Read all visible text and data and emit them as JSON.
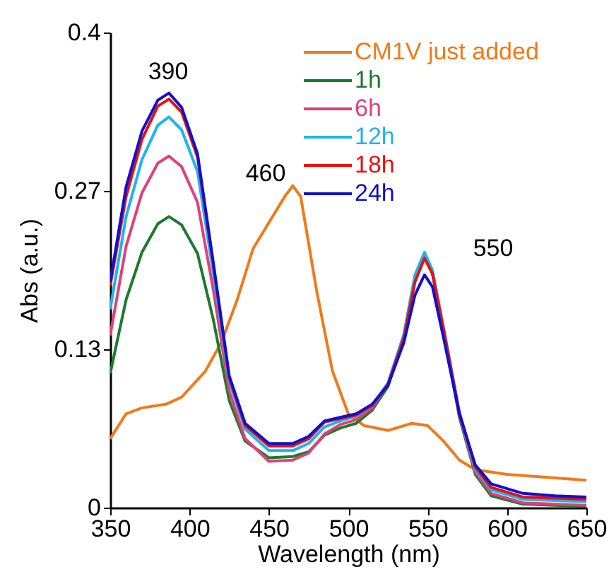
{
  "chart_data": {
    "type": "line",
    "xlabel": "Wavelength (nm)",
    "ylabel": "Abs (a.u.)",
    "xlim": [
      350,
      650
    ],
    "xticks": [
      350,
      400,
      450,
      500,
      550,
      600,
      650
    ],
    "ylim": [
      0,
      0.4
    ],
    "yticks": [
      0,
      {
        "value": 0.1333,
        "label": "0.13"
      },
      {
        "value": 0.2667,
        "label": "0.27"
      },
      0.4
    ],
    "grid": false,
    "legend": "top right",
    "marker": "none",
    "line_style": "solid",
    "annotations": [
      "390",
      "460",
      "550"
    ],
    "x": [
      350,
      360,
      370,
      380,
      387,
      395,
      405,
      415,
      425,
      435,
      450,
      465,
      475,
      485,
      495,
      505,
      515,
      525,
      535,
      542,
      548,
      553,
      560,
      570,
      580,
      590,
      610,
      630,
      650
    ],
    "series": [
      {
        "name": "CM1V just added",
        "color": "#f07a1a",
        "x": [
          350,
          360,
          370,
          385,
          395,
          410,
          420,
          430,
          440,
          450,
          460,
          465,
          470,
          480,
          490,
          500,
          510,
          525,
          540,
          550,
          560,
          570,
          580,
          600,
          620,
          650
        ],
        "values": [
          0.058,
          0.079,
          0.084,
          0.087,
          0.093,
          0.115,
          0.139,
          0.175,
          0.218,
          0.24,
          0.262,
          0.271,
          0.262,
          0.183,
          0.115,
          0.079,
          0.069,
          0.065,
          0.071,
          0.069,
          0.056,
          0.04,
          0.032,
          0.028,
          0.026,
          0.023
        ]
      },
      {
        "name": "1h",
        "color": "#1e7a2e",
        "values": [
          0.113,
          0.175,
          0.215,
          0.239,
          0.245,
          0.238,
          0.214,
          0.158,
          0.09,
          0.056,
          0.042,
          0.043,
          0.047,
          0.061,
          0.067,
          0.071,
          0.082,
          0.102,
          0.144,
          0.192,
          0.211,
          0.197,
          0.149,
          0.076,
          0.028,
          0.01,
          0.003,
          0.002,
          0.001
        ]
      },
      {
        "name": "6h",
        "color": "#e0407a",
        "values": [
          0.145,
          0.22,
          0.265,
          0.29,
          0.296,
          0.287,
          0.257,
          0.183,
          0.098,
          0.058,
          0.039,
          0.04,
          0.046,
          0.062,
          0.07,
          0.074,
          0.084,
          0.104,
          0.145,
          0.193,
          0.212,
          0.198,
          0.15,
          0.078,
          0.03,
          0.012,
          0.004,
          0.003,
          0.002
        ]
      },
      {
        "name": "12h",
        "color": "#1eb4ec",
        "values": [
          0.167,
          0.245,
          0.293,
          0.322,
          0.329,
          0.318,
          0.283,
          0.197,
          0.106,
          0.066,
          0.048,
          0.048,
          0.054,
          0.068,
          0.073,
          0.077,
          0.086,
          0.105,
          0.146,
          0.196,
          0.215,
          0.2,
          0.152,
          0.08,
          0.032,
          0.015,
          0.007,
          0.006,
          0.005
        ]
      },
      {
        "name": "18h",
        "color": "#e81010",
        "values": [
          0.187,
          0.262,
          0.31,
          0.338,
          0.344,
          0.333,
          0.295,
          0.204,
          0.109,
          0.069,
          0.052,
          0.052,
          0.058,
          0.072,
          0.075,
          0.078,
          0.086,
          0.104,
          0.143,
          0.19,
          0.21,
          0.197,
          0.15,
          0.08,
          0.034,
          0.017,
          0.009,
          0.008,
          0.007
        ]
      },
      {
        "name": "24h",
        "color": "#1010d0",
        "values": [
          0.19,
          0.27,
          0.317,
          0.343,
          0.349,
          0.337,
          0.298,
          0.206,
          0.111,
          0.071,
          0.054,
          0.054,
          0.06,
          0.073,
          0.076,
          0.079,
          0.087,
          0.103,
          0.139,
          0.179,
          0.196,
          0.186,
          0.143,
          0.079,
          0.036,
          0.02,
          0.012,
          0.01,
          0.009
        ]
      }
    ]
  }
}
